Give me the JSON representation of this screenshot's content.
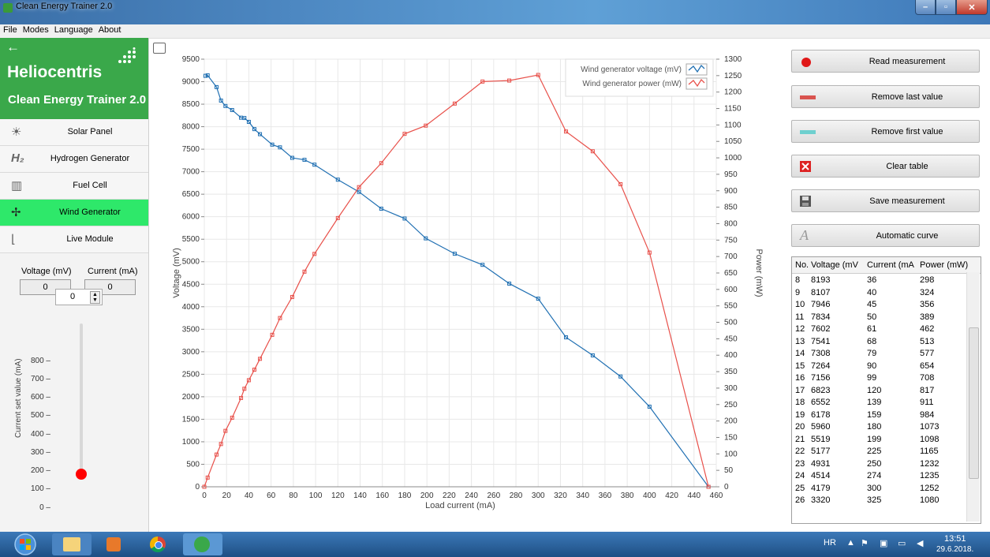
{
  "window": {
    "title": "Clean Energy Trainer 2.0",
    "min": "–",
    "max": "▫",
    "close": "✕"
  },
  "menu": [
    "File",
    "Modes",
    "Language",
    "About"
  ],
  "brand": {
    "back": "←",
    "logo": "Heliocentris",
    "subtitle": "Clean Energy Trainer 2.0"
  },
  "nav": [
    {
      "label": "Solar Panel",
      "icon": "sun-icon",
      "glyph": "☀",
      "active": false
    },
    {
      "label": "Hydrogen Generator",
      "icon": "hydrogen-icon",
      "glyph": "H₂",
      "active": false
    },
    {
      "label": "Fuel Cell",
      "icon": "fuel-cell-icon",
      "glyph": "▥",
      "active": false
    },
    {
      "label": "Wind Generator",
      "icon": "wind-turbine-icon",
      "glyph": "✢",
      "active": true
    },
    {
      "label": "Live Module",
      "icon": "live-module-icon",
      "glyph": "⌊",
      "active": false
    }
  ],
  "measure": {
    "voltage_label": "Voltage (mV)",
    "voltage_value": "0",
    "current_label": "Current (mA)",
    "current_value": "0"
  },
  "spinner": {
    "value": "0"
  },
  "slider": {
    "label": "Current set value (mA)",
    "ticks": [
      "800 –",
      "700 –",
      "600 –",
      "500 –",
      "400 –",
      "300 –",
      "200 –",
      "100 –",
      "0 –"
    ],
    "value": 0
  },
  "buttons": [
    {
      "label": "Read measurement",
      "icon": "record-icon"
    },
    {
      "label": "Remove last value",
      "icon": "remove-last-icon"
    },
    {
      "label": "Remove first value",
      "icon": "remove-first-icon"
    },
    {
      "label": "Clear table",
      "icon": "clear-icon"
    },
    {
      "label": "Save measurement",
      "icon": "save-icon"
    },
    {
      "label": "Automatic curve",
      "icon": "auto-curve-icon"
    }
  ],
  "table": {
    "columns": [
      "No.",
      "Voltage (mV",
      "Current (mA",
      "Power (mW)"
    ],
    "rows": [
      [
        "8",
        "8193",
        "36",
        "298"
      ],
      [
        "9",
        "8107",
        "40",
        "324"
      ],
      [
        "10",
        "7946",
        "45",
        "356"
      ],
      [
        "11",
        "7834",
        "50",
        "389"
      ],
      [
        "12",
        "7602",
        "61",
        "462"
      ],
      [
        "13",
        "7541",
        "68",
        "513"
      ],
      [
        "14",
        "7308",
        "79",
        "577"
      ],
      [
        "15",
        "7264",
        "90",
        "654"
      ],
      [
        "16",
        "7156",
        "99",
        "708"
      ],
      [
        "17",
        "6823",
        "120",
        "817"
      ],
      [
        "18",
        "6552",
        "139",
        "911"
      ],
      [
        "19",
        "6178",
        "159",
        "984"
      ],
      [
        "20",
        "5960",
        "180",
        "1073"
      ],
      [
        "21",
        "5519",
        "199",
        "1098"
      ],
      [
        "22",
        "5177",
        "225",
        "1165"
      ],
      [
        "23",
        "4931",
        "250",
        "1232"
      ],
      [
        "24",
        "4514",
        "274",
        "1235"
      ],
      [
        "25",
        "4179",
        "300",
        "1252"
      ],
      [
        "26",
        "3320",
        "325",
        "1080"
      ]
    ]
  },
  "chart_data": {
    "type": "line",
    "xlabel": "Load current (mA)",
    "ylabel_left": "Voltage (mV)",
    "ylabel_right": "Power (mW)",
    "xlim": [
      0,
      460
    ],
    "ylim_left": [
      0,
      9500
    ],
    "ylim_right": [
      0,
      1300
    ],
    "xticks": [
      0,
      20,
      40,
      60,
      80,
      100,
      120,
      140,
      160,
      180,
      200,
      220,
      240,
      260,
      280,
      300,
      320,
      340,
      360,
      380,
      400,
      420,
      440,
      460
    ],
    "yticks_left": [
      0,
      500,
      1000,
      1500,
      2000,
      2500,
      3000,
      3500,
      4000,
      4500,
      5000,
      5500,
      6000,
      6500,
      7000,
      7500,
      8000,
      8500,
      9000,
      9500
    ],
    "yticks_right": [
      0,
      50,
      100,
      150,
      200,
      250,
      300,
      350,
      400,
      450,
      500,
      550,
      600,
      650,
      700,
      750,
      800,
      850,
      900,
      950,
      1000,
      1050,
      1100,
      1150,
      1200,
      1250,
      1300
    ],
    "grid": true,
    "legend": "top-right",
    "series": [
      {
        "name": "Wind generator voltage (mV)",
        "axis": "left",
        "color": "#1f6fb2",
        "x": [
          1,
          3,
          11,
          15,
          19,
          25,
          33,
          36,
          40,
          45,
          50,
          61,
          68,
          79,
          90,
          99,
          120,
          139,
          159,
          180,
          199,
          225,
          250,
          274,
          300,
          325,
          349,
          374,
          400,
          453
        ],
        "y": [
          9130,
          9140,
          8880,
          8580,
          8460,
          8370,
          8200,
          8193,
          8107,
          7946,
          7834,
          7602,
          7541,
          7308,
          7264,
          7156,
          6823,
          6552,
          6178,
          5960,
          5519,
          5177,
          4931,
          4514,
          4179,
          3320,
          2920,
          2450,
          1780,
          0
        ]
      },
      {
        "name": "Wind generator power (mW)",
        "axis": "right",
        "color": "#e8504a",
        "x": [
          0,
          3,
          11,
          15,
          19,
          25,
          33,
          36,
          40,
          45,
          50,
          61,
          68,
          79,
          90,
          99,
          120,
          139,
          159,
          180,
          199,
          225,
          250,
          274,
          300,
          325,
          349,
          374,
          400,
          453
        ],
        "y": [
          0,
          28,
          98,
          130,
          170,
          210,
          270,
          298,
          324,
          356,
          389,
          462,
          513,
          577,
          654,
          708,
          817,
          911,
          984,
          1073,
          1098,
          1165,
          1232,
          1235,
          1252,
          1080,
          1020,
          920,
          712,
          0
        ]
      }
    ]
  },
  "taskbar": {
    "lang": "HR",
    "time": "13:51",
    "date": "29.6.2018."
  },
  "colors": {
    "brand_green": "#3aa84a",
    "active_nav": "#2ee86a",
    "voltage": "#1f6fb2",
    "power": "#e8504a"
  }
}
